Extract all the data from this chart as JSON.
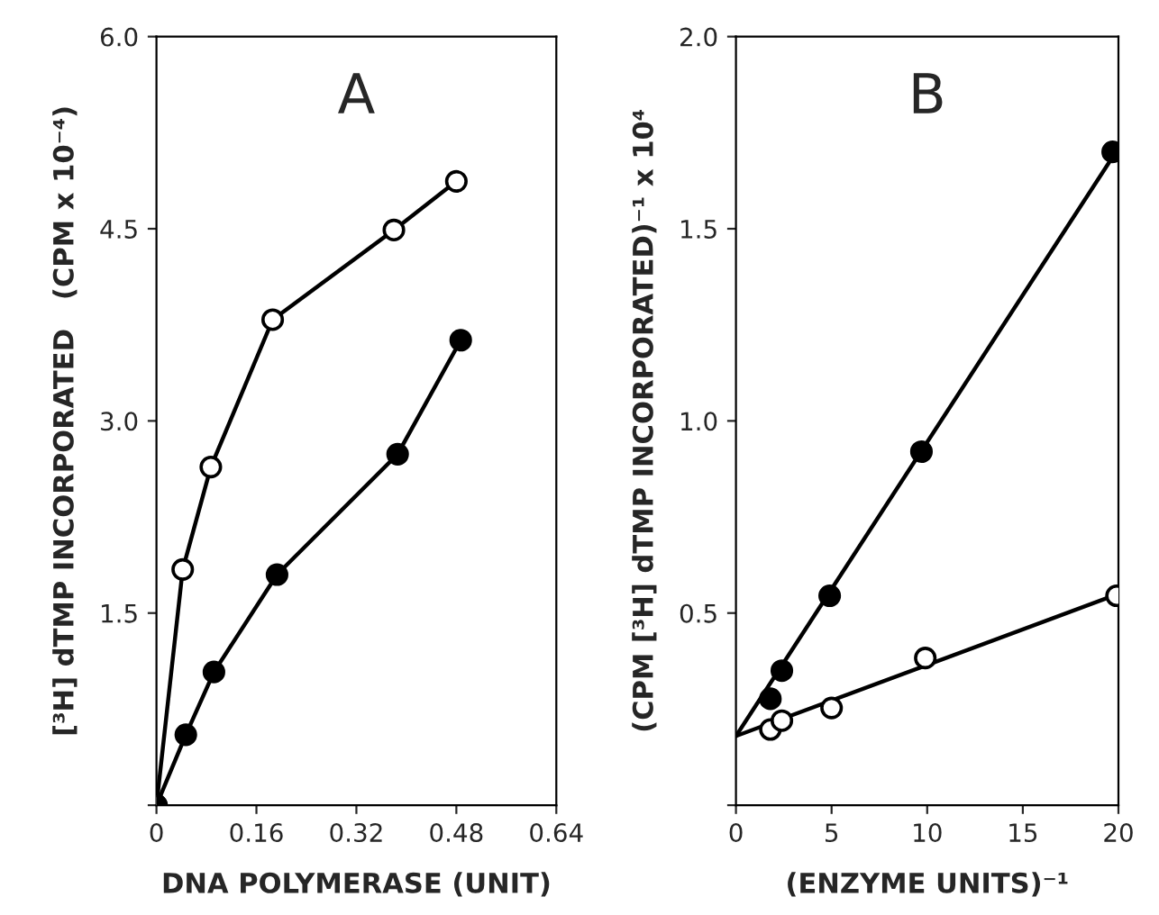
{
  "chart_data": [
    {
      "type": "line",
      "title": "A",
      "xlabel": "DNA POLYMERASE (UNIT)",
      "ylabel": "[³H] dTMP INCORPORATED   (CPM x 10⁻⁴)",
      "xlim": [
        0,
        0.64
      ],
      "ylim": [
        0,
        6
      ],
      "xticks": [
        0,
        0.16,
        0.32,
        0.48,
        0.64
      ],
      "yticks": [
        {
          "value": 0,
          "label": null
        },
        1.5,
        {
          "value": 3,
          "label": "3.0"
        },
        4.5,
        {
          "value": 6,
          "label": "6.0"
        }
      ],
      "marker": "circle",
      "line_style": "solid",
      "grid": false,
      "legend": false,
      "series": [
        {
          "color": "#ffffff",
          "x": [
            0,
            0.042,
            0.087,
            0.186,
            0.38,
            0.48
          ],
          "values": [
            0,
            1.84,
            2.64,
            3.79,
            4.49,
            4.87
          ]
        },
        {
          "color": "#000000",
          "x": [
            0,
            0.047,
            0.092,
            0.193,
            0.386,
            0.487
          ],
          "values": [
            0,
            0.55,
            1.04,
            1.8,
            2.74,
            3.63
          ]
        }
      ]
    },
    {
      "type": "scatter",
      "title": "B",
      "xlabel": "(ENZYME UNITS)⁻¹",
      "ylabel": "(CPM [³H] dTMP INCORPORATED)⁻¹ x 10⁴",
      "xlim": [
        0,
        20
      ],
      "ylim": [
        0,
        2
      ],
      "xticks": [
        0,
        5,
        10,
        15,
        20
      ],
      "yticks": [
        {
          "value": 0,
          "label": null
        },
        0.5,
        {
          "value": 1,
          "label": "1.0"
        },
        1.5,
        {
          "value": 2,
          "label": "2.0"
        }
      ],
      "marker": "circle",
      "grid": false,
      "legend": false,
      "series": [
        {
          "type": "line",
          "marker": "none",
          "color": "#000000",
          "x": [
            0,
            20
          ],
          "values": [
            0.18,
            1.71
          ]
        },
        {
          "type": "line",
          "marker": "none",
          "color": "#000000",
          "x": [
            0,
            20
          ],
          "values": [
            0.18,
            0.55
          ]
        },
        {
          "color": "#000000",
          "x": [
            1.8,
            2.4,
            4.9,
            9.7,
            19.7
          ],
          "values": [
            0.277,
            0.35,
            0.545,
            0.92,
            1.7
          ]
        },
        {
          "color": "#ffffff",
          "x": [
            1.8,
            2.4,
            5,
            9.9,
            19.9
          ],
          "values": [
            0.197,
            0.22,
            0.253,
            0.383,
            0.545
          ]
        }
      ]
    }
  ]
}
